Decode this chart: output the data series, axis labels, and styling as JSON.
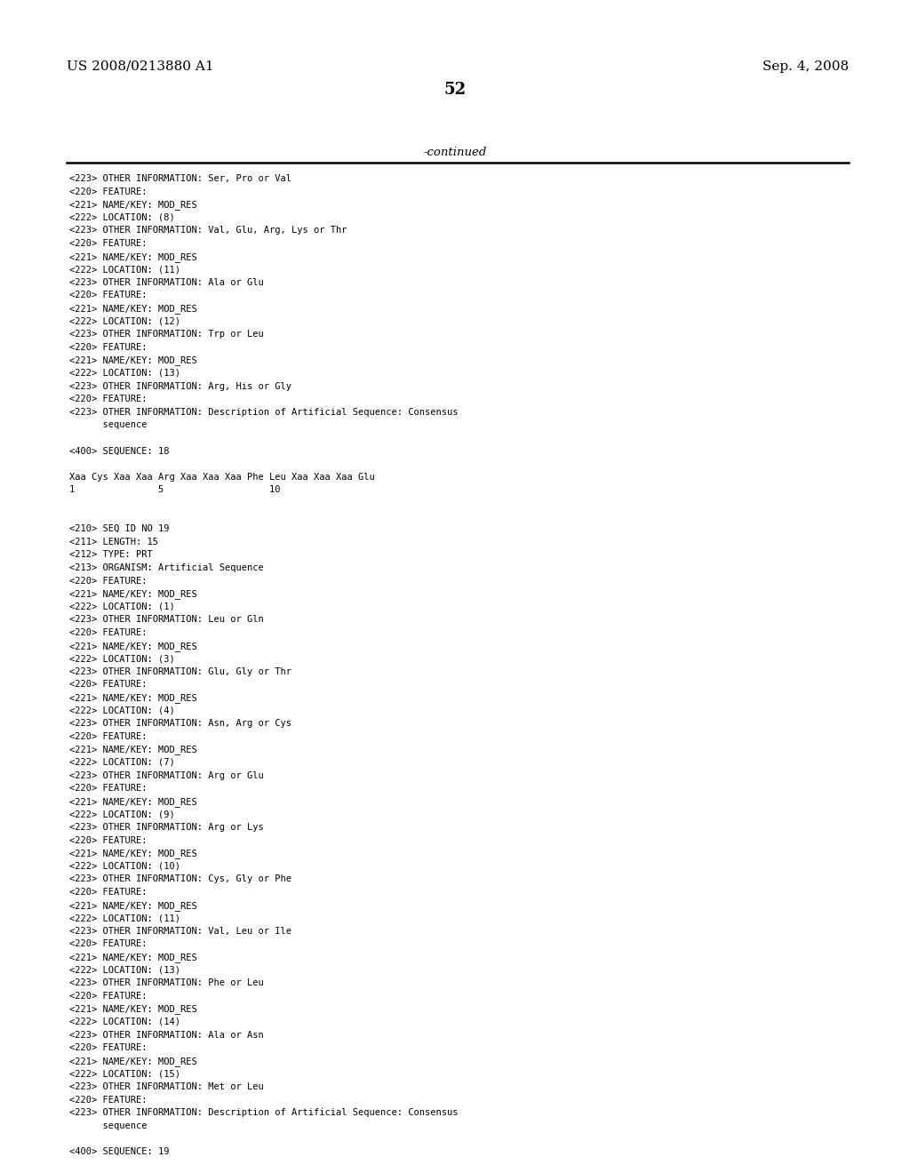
{
  "header_left": "US 2008/0213880 A1",
  "header_right": "Sep. 4, 2008",
  "page_number": "52",
  "continued_label": "-continued",
  "bg_color": "#ffffff",
  "text_color": "#000000",
  "lines": [
    "<223> OTHER INFORMATION: Ser, Pro or Val",
    "<220> FEATURE:",
    "<221> NAME/KEY: MOD_RES",
    "<222> LOCATION: (8)",
    "<223> OTHER INFORMATION: Val, Glu, Arg, Lys or Thr",
    "<220> FEATURE:",
    "<221> NAME/KEY: MOD_RES",
    "<222> LOCATION: (11)",
    "<223> OTHER INFORMATION: Ala or Glu",
    "<220> FEATURE:",
    "<221> NAME/KEY: MOD_RES",
    "<222> LOCATION: (12)",
    "<223> OTHER INFORMATION: Trp or Leu",
    "<220> FEATURE:",
    "<221> NAME/KEY: MOD_RES",
    "<222> LOCATION: (13)",
    "<223> OTHER INFORMATION: Arg, His or Gly",
    "<220> FEATURE:",
    "<223> OTHER INFORMATION: Description of Artificial Sequence: Consensus",
    "      sequence",
    "",
    "<400> SEQUENCE: 18",
    "",
    "Xaa Cys Xaa Xaa Arg Xaa Xaa Xaa Phe Leu Xaa Xaa Xaa Glu",
    "1               5                   10",
    "",
    "",
    "<210> SEQ ID NO 19",
    "<211> LENGTH: 15",
    "<212> TYPE: PRT",
    "<213> ORGANISM: Artificial Sequence",
    "<220> FEATURE:",
    "<221> NAME/KEY: MOD_RES",
    "<222> LOCATION: (1)",
    "<223> OTHER INFORMATION: Leu or Gln",
    "<220> FEATURE:",
    "<221> NAME/KEY: MOD_RES",
    "<222> LOCATION: (3)",
    "<223> OTHER INFORMATION: Glu, Gly or Thr",
    "<220> FEATURE:",
    "<221> NAME/KEY: MOD_RES",
    "<222> LOCATION: (4)",
    "<223> OTHER INFORMATION: Asn, Arg or Cys",
    "<220> FEATURE:",
    "<221> NAME/KEY: MOD_RES",
    "<222> LOCATION: (7)",
    "<223> OTHER INFORMATION: Arg or Glu",
    "<220> FEATURE:",
    "<221> NAME/KEY: MOD_RES",
    "<222> LOCATION: (9)",
    "<223> OTHER INFORMATION: Arg or Lys",
    "<220> FEATURE:",
    "<221> NAME/KEY: MOD_RES",
    "<222> LOCATION: (10)",
    "<223> OTHER INFORMATION: Cys, Gly or Phe",
    "<220> FEATURE:",
    "<221> NAME/KEY: MOD_RES",
    "<222> LOCATION: (11)",
    "<223> OTHER INFORMATION: Val, Leu or Ile",
    "<220> FEATURE:",
    "<221> NAME/KEY: MOD_RES",
    "<222> LOCATION: (13)",
    "<223> OTHER INFORMATION: Phe or Leu",
    "<220> FEATURE:",
    "<221> NAME/KEY: MOD_RES",
    "<222> LOCATION: (14)",
    "<223> OTHER INFORMATION: Ala or Asn",
    "<220> FEATURE:",
    "<221> NAME/KEY: MOD_RES",
    "<222> LOCATION: (15)",
    "<223> OTHER INFORMATION: Met or Leu",
    "<220> FEATURE:",
    "<223> OTHER INFORMATION: Description of Artificial Sequence: Consensus",
    "      sequence",
    "",
    "<400> SEQUENCE: 19"
  ]
}
